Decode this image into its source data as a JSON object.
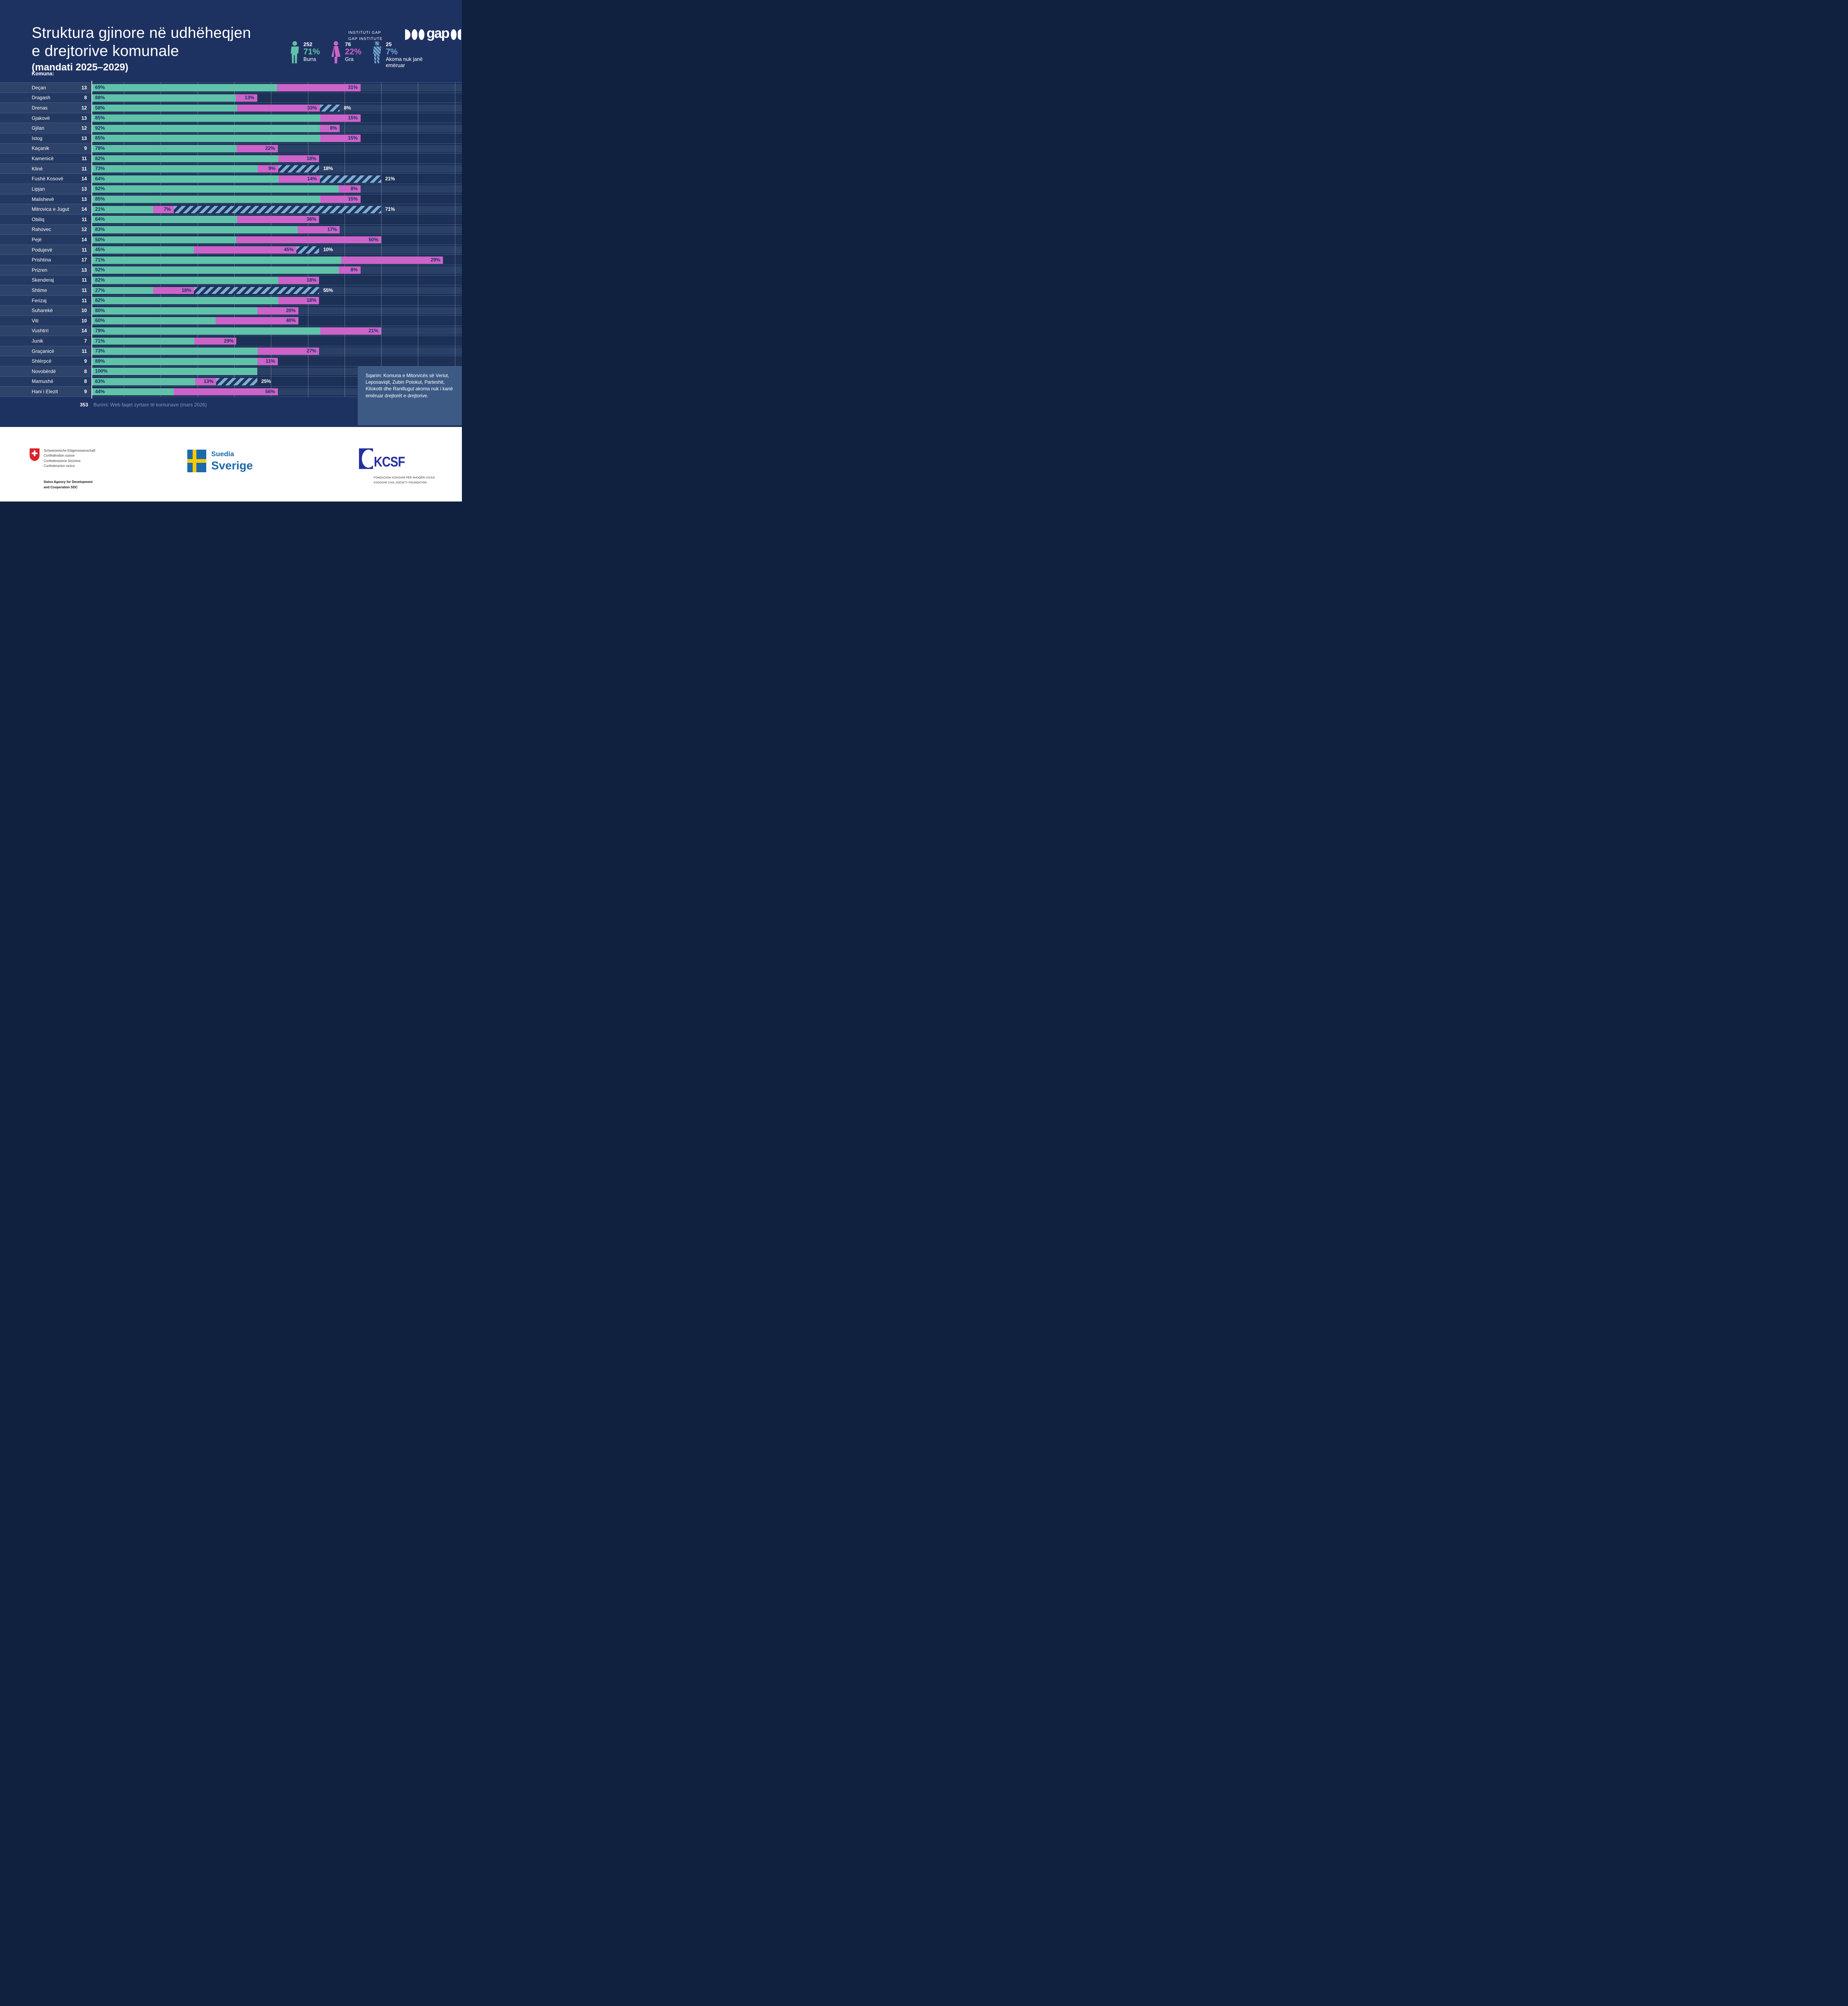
{
  "title": {
    "line1": "Struktura gjinore në udhëheqjen",
    "line2": "e drejtorive komunale",
    "subtitle": "(mandati 2025–2029)"
  },
  "institute": {
    "line1": "INSTITUTI GAP",
    "line2": "GAP INSTITUTE",
    "logo_word": "gap"
  },
  "legend": {
    "items": [
      {
        "count": "252",
        "percent": "71%",
        "label": "Burra",
        "color": "#60c2a8"
      },
      {
        "count": "76",
        "percent": "22%",
        "label": "Gra",
        "color": "#cc63c8"
      },
      {
        "count": "25",
        "percent": "7%",
        "label": "Akoma nuk janë emëruar",
        "color": "#6fa3cb"
      }
    ]
  },
  "column_header": "Komuna:",
  "chart_data": {
    "type": "bar",
    "orientation": "horizontal-stacked",
    "note": "bar length proportional to number of directorates per municipality; segments are percent shares",
    "categories": [
      "Deçan",
      "Dragash",
      "Drenas",
      "Gjakovë",
      "Gjilan",
      "Istog",
      "Kaçanik",
      "Kamenicë",
      "Klinë",
      "Fushë Kosovë",
      "Lipjan",
      "Malishevë",
      "Mitrovica e Jugut",
      "Obiliq",
      "Rahovec",
      "Pejë",
      "Podujevë",
      "Prishtina",
      "Prizren",
      "Skenderaj",
      "Shtime",
      "Ferizaj",
      "Suharekë",
      "Viti",
      "Vushtrri",
      "Junik",
      "Graçanicë",
      "Shtërpcë",
      "Novobërdë",
      "Mamushë",
      "Hani i Elezit"
    ],
    "directorates": [
      13,
      8,
      12,
      13,
      12,
      13,
      9,
      11,
      11,
      14,
      13,
      13,
      14,
      11,
      12,
      14,
      11,
      17,
      13,
      11,
      11,
      11,
      10,
      10,
      14,
      7,
      11,
      9,
      8,
      8,
      9
    ],
    "series": [
      {
        "name": "Burra",
        "color": "#60c2a8",
        "values": [
          69,
          88,
          58,
          85,
          92,
          85,
          78,
          82,
          73,
          64,
          92,
          85,
          21,
          64,
          83,
          50,
          45,
          71,
          92,
          82,
          27,
          82,
          80,
          60,
          79,
          71,
          73,
          89,
          100,
          63,
          44
        ]
      },
      {
        "name": "Gra",
        "color": "#cc63c8",
        "values": [
          31,
          13,
          33,
          15,
          8,
          15,
          22,
          18,
          9,
          14,
          8,
          15,
          7,
          36,
          17,
          50,
          45,
          29,
          8,
          18,
          18,
          18,
          20,
          40,
          21,
          29,
          27,
          11,
          0,
          13,
          56
        ]
      },
      {
        "name": "Akoma nuk janë emëruar",
        "color": "#7fadd0",
        "pattern": "diagonal-hatch",
        "values": [
          0,
          0,
          8,
          0,
          0,
          0,
          0,
          0,
          18,
          21,
          0,
          0,
          71,
          0,
          0,
          0,
          10,
          0,
          0,
          0,
          55,
          0,
          0,
          0,
          0,
          0,
          0,
          0,
          0,
          25,
          0
        ]
      }
    ],
    "value_format": "percent",
    "total": 353
  },
  "source": {
    "total": "353",
    "text": "Burimi: Web faqet zyrtare të komunave (mars 2026)"
  },
  "note": "Sqarim:  Komuna e Mitorvicës së Veriut, Leposaviqit, Zubin Potokut, Parteshit, Kllokotit dhe Ranillugut akoma nuk i kanë emëruar drejtorët e drejtorive.",
  "footer": {
    "swiss": {
      "lines": [
        "Schweizerische Eidgenossenschaft",
        "Confédération suisse",
        "Confederazione Svizzera",
        "Confederaziun svizra"
      ],
      "agency_line1": "Swiss Agency for Development",
      "agency_line2": "and Cooperation SDC"
    },
    "sweden": {
      "name_sq": "Suedia",
      "name_sv": "Sverige"
    },
    "kcsf": {
      "abbr": "KCSF",
      "line1": "FONDACIONI KOSOVAR PËR SHOQËRI CIVILE",
      "line2": "KOSOVAR CIVIL SOCIETY FOUNDATION"
    }
  },
  "colors": {
    "bg": "#1e3261",
    "bandLight": "#2a4066",
    "bandLightLabel": "#2e4369",
    "bandDark": "#1d3157",
    "bandDarkLabel": "#243961",
    "gap": "#1b3055",
    "teal": "#60c2a8",
    "magenta": "#cc63c8",
    "hatch": "#7fadd0",
    "hatchGap": "#1f3560",
    "navyText": "#17315f",
    "slate": "#7c98c4",
    "noteBg": "#3d5a85",
    "sweBlue": "#1b6aaf",
    "sweYellow": "#fdca00",
    "sweText": "#1b6aa8",
    "kcsfBlue": "#252f9d",
    "swissRed": "#d8232a"
  }
}
